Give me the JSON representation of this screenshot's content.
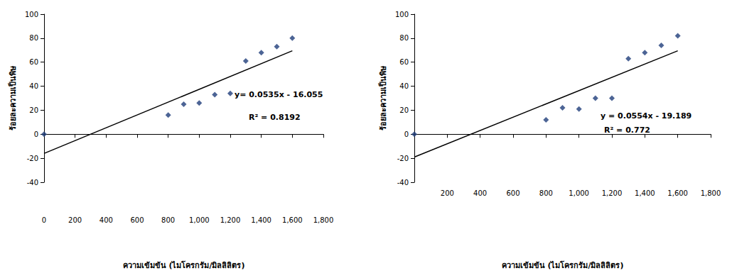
{
  "chart_data": [
    {
      "type": "scatter",
      "x_label": "ความเข้มข้น (ไมโครกรัม/มิลลิลิตร)",
      "y_label": "ร้อยละความเป็นพิษ",
      "xlim": [
        0,
        1800
      ],
      "xticks": [
        0,
        200,
        400,
        600,
        800,
        {
          "value": 1000,
          "label": "1,000"
        },
        {
          "value": 1200,
          "label": "1,200"
        },
        {
          "value": 1400,
          "label": "1,400"
        },
        {
          "value": 1600,
          "label": "1,600"
        },
        {
          "value": 1800,
          "label": "1,800"
        }
      ],
      "ylim": [
        -40,
        100
      ],
      "yticks": [
        -40,
        -20,
        0,
        20,
        40,
        60,
        80,
        100
      ],
      "grid": false,
      "series": [
        {
          "type": "scatter",
          "color": "#1f3d7a",
          "marker": "diamond",
          "x": [
            0,
            800,
            900,
            1000,
            1100,
            1200,
            1300,
            1400,
            1500,
            1600
          ],
          "values": [
            0,
            16,
            25,
            26,
            33,
            34,
            61,
            68,
            73,
            80
          ]
        },
        {
          "type": "line",
          "color": "#000000",
          "line_style": "solid",
          "x": [
            0,
            1600
          ],
          "values": [
            -16,
            69.5
          ]
        }
      ],
      "annotations": [
        "y= 0.0535x - 16.055",
        "R² = 0.8192"
      ]
    },
    {
      "type": "scatter",
      "x_label": "ความเข้มข้น (ไมโครกรัม/มิลลิลิตร)",
      "y_label": "ร้อยละความเป็นพิษ",
      "xlim": [
        0,
        1800
      ],
      "xticks": [
        200,
        400,
        600,
        800,
        {
          "value": 1000,
          "label": "1,000"
        },
        {
          "value": 1200,
          "label": "1,200"
        },
        {
          "value": 1400,
          "label": "1,400"
        },
        {
          "value": 1600,
          "label": "1,600"
        },
        {
          "value": 1800,
          "label": "1,800"
        }
      ],
      "ylim": [
        -40,
        100
      ],
      "yticks": [
        -40,
        -20,
        0,
        20,
        40,
        60,
        80,
        100
      ],
      "grid": false,
      "series": [
        {
          "type": "scatter",
          "color": "#1f3d7a",
          "marker": "diamond",
          "x": [
            0,
            800,
            900,
            1000,
            1100,
            1200,
            1300,
            1400,
            1500,
            1600
          ],
          "values": [
            0,
            12,
            22,
            21,
            30,
            30,
            63,
            68,
            74,
            82
          ]
        },
        {
          "type": "line",
          "color": "#000000",
          "line_style": "solid",
          "x": [
            0,
            1600
          ],
          "values": [
            -19,
            69.5
          ]
        }
      ],
      "annotations": [
        "y = 0.0554x - 19.189",
        "R² = 0.772"
      ]
    }
  ]
}
